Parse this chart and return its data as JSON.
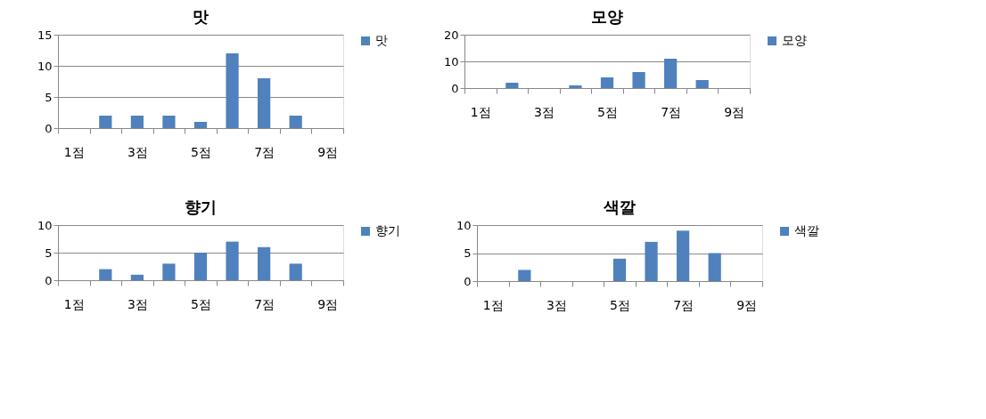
{
  "chart_data": [
    {
      "type": "bar",
      "title": "맛",
      "categories": [
        "1점",
        null,
        "3점",
        null,
        "5점",
        null,
        "7점",
        null,
        "9점"
      ],
      "series": [
        {
          "name": "맛",
          "color": "#4f81bd",
          "values": [
            0,
            2,
            2,
            2,
            1,
            12,
            8,
            2,
            0
          ]
        }
      ],
      "ylim": [
        0,
        15
      ],
      "yticks": [
        0,
        5,
        10,
        15
      ],
      "grid": "y",
      "legend": "right"
    },
    {
      "type": "bar",
      "title": "모양",
      "categories": [
        "1점",
        null,
        "3점",
        null,
        "5점",
        null,
        "7점",
        null,
        "9점"
      ],
      "series": [
        {
          "name": "모양",
          "color": "#4f81bd",
          "values": [
            0,
            2,
            0,
            1,
            4,
            6,
            11,
            3,
            0
          ]
        }
      ],
      "ylim": [
        0,
        20
      ],
      "yticks": [
        0,
        10,
        20
      ],
      "grid": "y",
      "legend": "right"
    },
    {
      "type": "bar",
      "title": "향기",
      "categories": [
        "1점",
        null,
        "3점",
        null,
        "5점",
        null,
        "7점",
        null,
        "9점"
      ],
      "series": [
        {
          "name": "향기",
          "color": "#4f81bd",
          "values": [
            0,
            2,
            1,
            3,
            5,
            7,
            6,
            3,
            0
          ]
        }
      ],
      "ylim": [
        0,
        10
      ],
      "yticks": [
        0,
        5,
        10
      ],
      "grid": "y",
      "legend": "right"
    },
    {
      "type": "bar",
      "title": "색깔",
      "categories": [
        "1점",
        null,
        "3점",
        null,
        "5점",
        null,
        "7점",
        null,
        "9점"
      ],
      "series": [
        {
          "name": "색깔",
          "color": "#4f81bd",
          "values": [
            0,
            2,
            0,
            0,
            4,
            7,
            9,
            5,
            0
          ]
        }
      ],
      "ylim": [
        0,
        10
      ],
      "yticks": [
        0,
        5,
        10
      ],
      "grid": "y",
      "legend": "right"
    }
  ]
}
